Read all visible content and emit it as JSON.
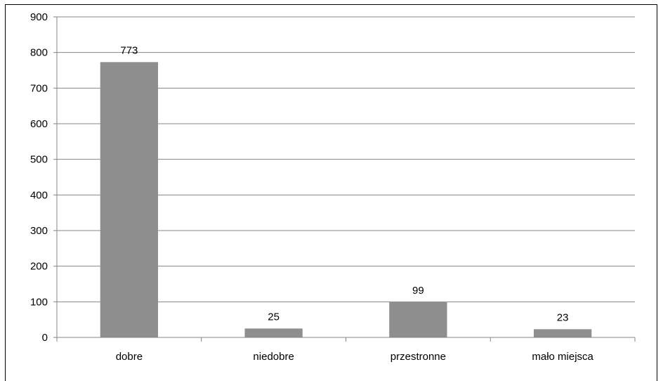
{
  "chart_data": {
    "type": "bar",
    "title": "",
    "xlabel": "",
    "ylabel": "",
    "categories": [
      "dobre",
      "niedobre",
      "przestronne",
      "mało miejsca"
    ],
    "values": [
      773,
      25,
      99,
      23
    ],
    "data_labels": [
      "773",
      "25",
      "99",
      "23"
    ],
    "ylim": [
      0,
      900
    ],
    "yticks": [
      "0",
      "100",
      "200",
      "300",
      "400",
      "500",
      "600",
      "700",
      "800",
      "900"
    ],
    "grid": true,
    "legend": "none",
    "colors": {
      "bar": "#8e8e8e",
      "grid": "#868686",
      "axis": "#868686"
    }
  }
}
